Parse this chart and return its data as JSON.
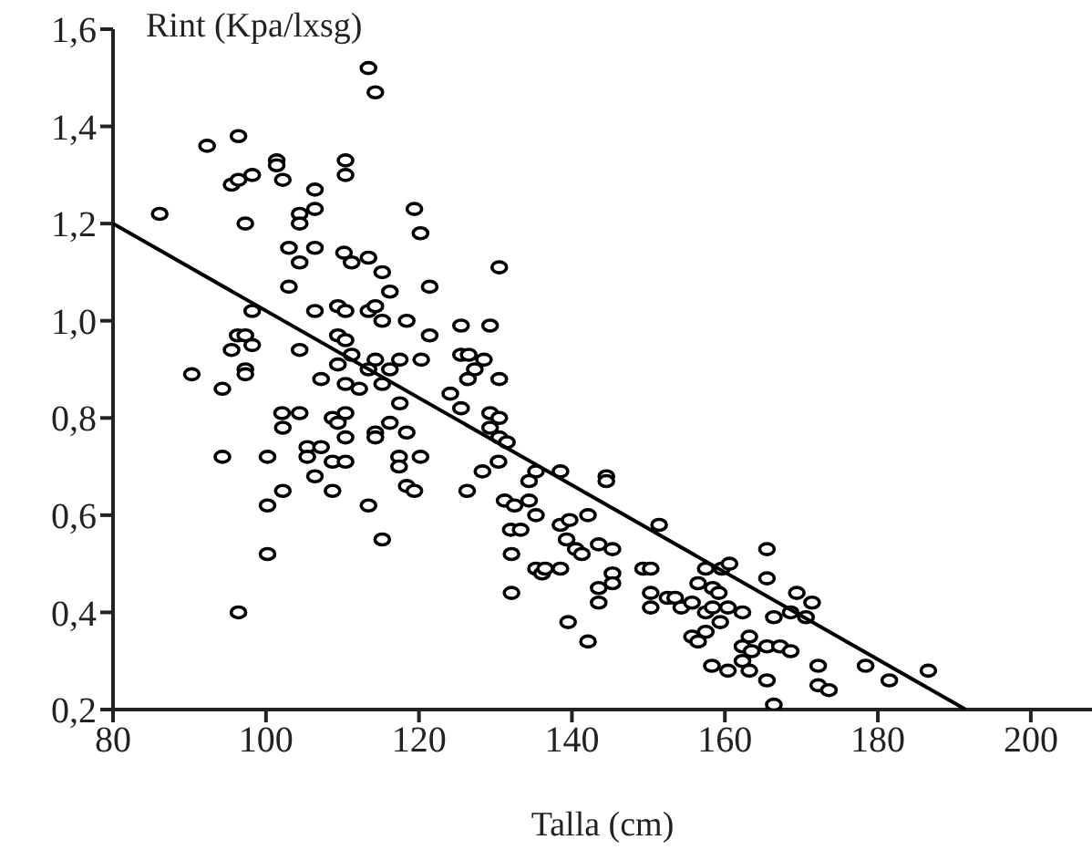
{
  "chart_data": {
    "type": "scatter",
    "xlabel": "Talla (cm)",
    "ylabel": "Rint (Kpa/lxsg)",
    "xlim": [
      80,
      208
    ],
    "xticks": [
      80,
      100,
      120,
      140,
      160,
      180,
      200
    ],
    "ylim": [
      0.2,
      1.6
    ],
    "yticks": [
      {
        "value": 0.2,
        "label": "0,2"
      },
      {
        "value": 0.4,
        "label": "0,4"
      },
      {
        "value": 0.6,
        "label": "0,6"
      },
      {
        "value": 0.8,
        "label": "0,8"
      },
      {
        "value": 1.0,
        "label": "1,0"
      },
      {
        "value": 1.2,
        "label": "1,2"
      },
      {
        "value": 1.4,
        "label": "1,4"
      },
      {
        "value": 1.6,
        "label": "1,6"
      }
    ],
    "series": [
      {
        "marker": "circle",
        "color": "#000000",
        "x": [
          113.4,
          114.3,
          92.3,
          96.4,
          95.5,
          96.4,
          98.2,
          101.4,
          101.4,
          102.2,
          110.4,
          110.4,
          106.4,
          106.4,
          104.4,
          104.4,
          86.1,
          97.3,
          119.4,
          120.2,
          103.0,
          106.4,
          104.4,
          110.2,
          111.2,
          113.4,
          115.2,
          116.2,
          121.4,
          130.5,
          103.0,
          98.2,
          106.4,
          109.4,
          110.4,
          113.4,
          114.3,
          115.2,
          118.4,
          121.4,
          125.5,
          129.3,
          96.3,
          97.3,
          98.2,
          95.5,
          104.4,
          109.4,
          110.4,
          111.2,
          114.3,
          117.5,
          120.3,
          125.5,
          126.5,
          128.5,
          109.4,
          97.3,
          97.3,
          90.3,
          94.3,
          107.2,
          110.4,
          112.2,
          115.2,
          116.2,
          113.4,
          124.1,
          126.4,
          127.3,
          130.5,
          102.1,
          104.4,
          108.7,
          110.4,
          117.5,
          125.5,
          129.3,
          130.5,
          102.2,
          109.4,
          110.4,
          105.4,
          107.2,
          105.4,
          94.3,
          100.2,
          108.7,
          110.4,
          106.4,
          114.3,
          114.3,
          116.2,
          118.4,
          117.4,
          117.4,
          120.2,
          118.4,
          119.4,
          102.2,
          108.7,
          100.2,
          113.4,
          115.2,
          100.2,
          96.4,
          126.3,
          128.3,
          129.3,
          130.5,
          131.5,
          130.4,
          135.3,
          134.4,
          131.2,
          132.5,
          134.4,
          135.3,
          132.0,
          133.3,
          132.1,
          132.1,
          135.3,
          136.1,
          138.5,
          144.5,
          144.5,
          138.5,
          139.7,
          142.1,
          139.3,
          140.5,
          141.3,
          143.5,
          145.3,
          136.5,
          138.5,
          145.3,
          145.3,
          143.5,
          143.5,
          139.5,
          142.1,
          151.4,
          149.3,
          150.3,
          150.3,
          150.3,
          152.5,
          153.5,
          154.3,
          155.7,
          156.5,
          157.5,
          158.4,
          159.2,
          157.5,
          158.4,
          159.4,
          160.4,
          162.3,
          159.6,
          160.6,
          157.5,
          155.7,
          156.5,
          158.3,
          160.4,
          162.3,
          163.2,
          162.3,
          163.5,
          163.2,
          165.5,
          165.5,
          166.4,
          165.5,
          165.5,
          166.4,
          167.2,
          168.6,
          168.6,
          169.4,
          171.4,
          170.6,
          172.2,
          172.2,
          173.6,
          178.4,
          181.5,
          186.6
        ],
        "values": [
          1.52,
          1.47,
          1.36,
          1.38,
          1.28,
          1.29,
          1.3,
          1.33,
          1.32,
          1.29,
          1.33,
          1.3,
          1.27,
          1.23,
          1.22,
          1.2,
          1.22,
          1.2,
          1.23,
          1.18,
          1.15,
          1.15,
          1.12,
          1.14,
          1.12,
          1.13,
          1.1,
          1.06,
          1.07,
          1.11,
          1.07,
          1.02,
          1.02,
          1.03,
          1.02,
          1.02,
          1.03,
          1.0,
          1.0,
          0.97,
          0.99,
          0.99,
          0.97,
          0.97,
          0.95,
          0.94,
          0.94,
          0.97,
          0.96,
          0.93,
          0.92,
          0.92,
          0.92,
          0.93,
          0.93,
          0.92,
          0.91,
          0.9,
          0.89,
          0.89,
          0.86,
          0.88,
          0.87,
          0.86,
          0.87,
          0.9,
          0.9,
          0.85,
          0.88,
          0.9,
          0.88,
          0.81,
          0.81,
          0.8,
          0.81,
          0.83,
          0.82,
          0.81,
          0.8,
          0.78,
          0.79,
          0.76,
          0.74,
          0.74,
          0.72,
          0.72,
          0.72,
          0.71,
          0.71,
          0.68,
          0.77,
          0.76,
          0.79,
          0.77,
          0.72,
          0.7,
          0.72,
          0.66,
          0.65,
          0.65,
          0.65,
          0.62,
          0.62,
          0.55,
          0.52,
          0.4,
          0.65,
          0.69,
          0.78,
          0.76,
          0.75,
          0.71,
          0.69,
          0.67,
          0.63,
          0.62,
          0.63,
          0.6,
          0.57,
          0.57,
          0.52,
          0.44,
          0.49,
          0.48,
          0.69,
          0.68,
          0.67,
          0.58,
          0.59,
          0.6,
          0.55,
          0.53,
          0.52,
          0.54,
          0.53,
          0.49,
          0.49,
          0.48,
          0.46,
          0.45,
          0.42,
          0.38,
          0.34,
          0.58,
          0.49,
          0.49,
          0.44,
          0.41,
          0.43,
          0.43,
          0.41,
          0.42,
          0.46,
          0.49,
          0.45,
          0.44,
          0.4,
          0.41,
          0.38,
          0.41,
          0.4,
          0.49,
          0.5,
          0.36,
          0.35,
          0.34,
          0.29,
          0.28,
          0.3,
          0.35,
          0.33,
          0.32,
          0.28,
          0.33,
          0.26,
          0.21,
          0.53,
          0.47,
          0.39,
          0.33,
          0.32,
          0.4,
          0.44,
          0.42,
          0.39,
          0.29,
          0.25,
          0.24,
          0.29,
          0.26,
          0.28
        ]
      },
      {
        "type": "line",
        "marker": "none",
        "color": "#000000",
        "x": [
          80,
          191.5
        ],
        "values": [
          1.2,
          0.2
        ]
      }
    ]
  }
}
